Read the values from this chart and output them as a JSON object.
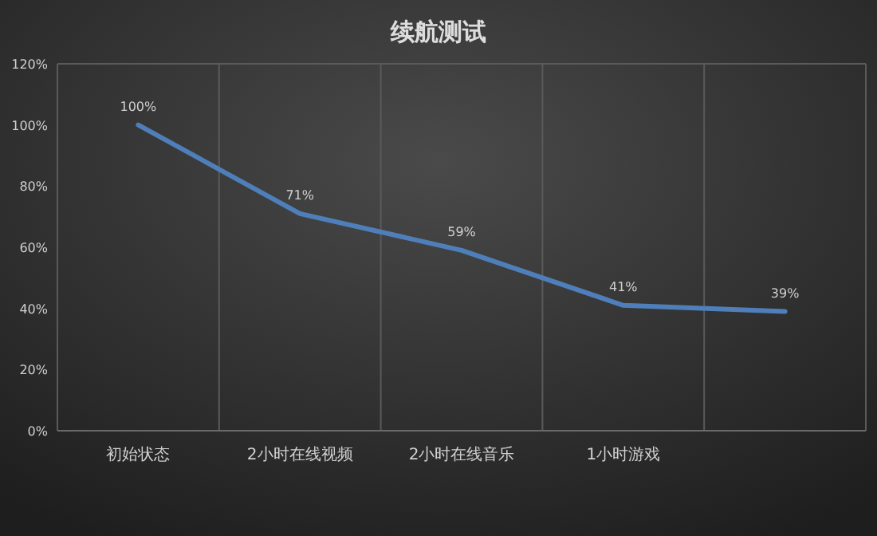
{
  "chart_data": {
    "type": "line",
    "title": "续航测试",
    "categories": [
      "初始状态",
      "2小时在线视频",
      "2小时在线音乐",
      "1小时游戏",
      null
    ],
    "series": [
      {
        "color": "#4f7fba",
        "values": [
          100,
          71,
          59,
          41,
          39
        ]
      }
    ],
    "value_labels": [
      "100%",
      "71%",
      "59%",
      "41%",
      "39%"
    ],
    "ylim": [
      0,
      120
    ],
    "yticks": [
      {
        "value": 0,
        "label": "0%"
      },
      {
        "value": 20,
        "label": "20%"
      },
      {
        "value": 40,
        "label": "40%"
      },
      {
        "value": 60,
        "label": "60%"
      },
      {
        "value": 80,
        "label": "80%"
      },
      {
        "value": 100,
        "label": "100%"
      },
      {
        "value": 120,
        "label": "120%"
      }
    ],
    "grid": "x",
    "marker": "none",
    "line_style": "solid"
  }
}
